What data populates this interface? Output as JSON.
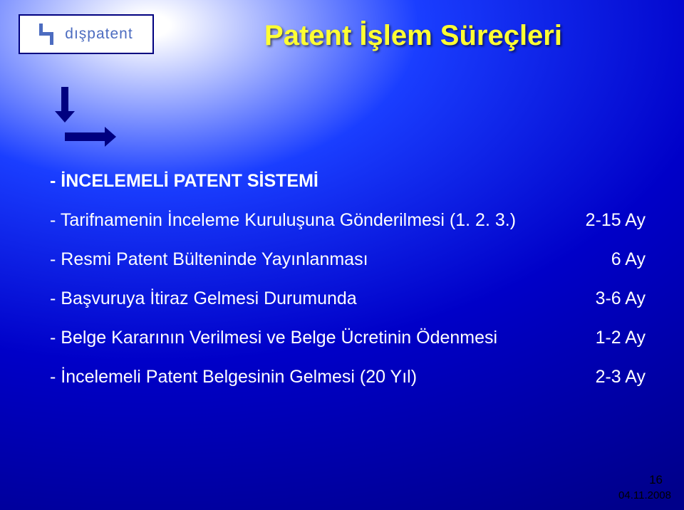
{
  "colors": {
    "background_center": "#ffffff",
    "background_mid": "#1a3eff",
    "background_outer": "#00008a",
    "title_color": "#ffff33",
    "text_color": "#ffffff",
    "arrow_color": "#000080",
    "logo_color": "#4c6cc0",
    "logo_border": "#000080",
    "footer_color": "#000000"
  },
  "typography": {
    "title_fontsize": 40,
    "body_fontsize": 25,
    "footer_fontsize": 15,
    "font_family": "Arial"
  },
  "logo": {
    "text": "dışpatent"
  },
  "title": "Patent İşlem Süreçleri",
  "heading": "- İNCELEMELİ PATENT SİSTEMİ",
  "rows": [
    {
      "label": "- Tarifnamenin İnceleme Kuruluşuna Gönderilmesi (1. 2. 3.)",
      "value": "2-15 Ay"
    },
    {
      "label": "- Resmi Patent Bülteninde Yayınlanması",
      "value": "6 Ay"
    },
    {
      "label": "- Başvuruya İtiraz Gelmesi Durumunda",
      "value": "3-6 Ay"
    },
    {
      "label": "- Belge Kararının Verilmesi ve Belge Ücretinin Ödenmesi",
      "value": "1-2 Ay"
    },
    {
      "label": "- İncelemeli Patent Belgesinin Gelmesi (20 Yıl)",
      "value": "2-3 Ay"
    }
  ],
  "footer": {
    "page": "16",
    "date": "04.11.2008"
  }
}
